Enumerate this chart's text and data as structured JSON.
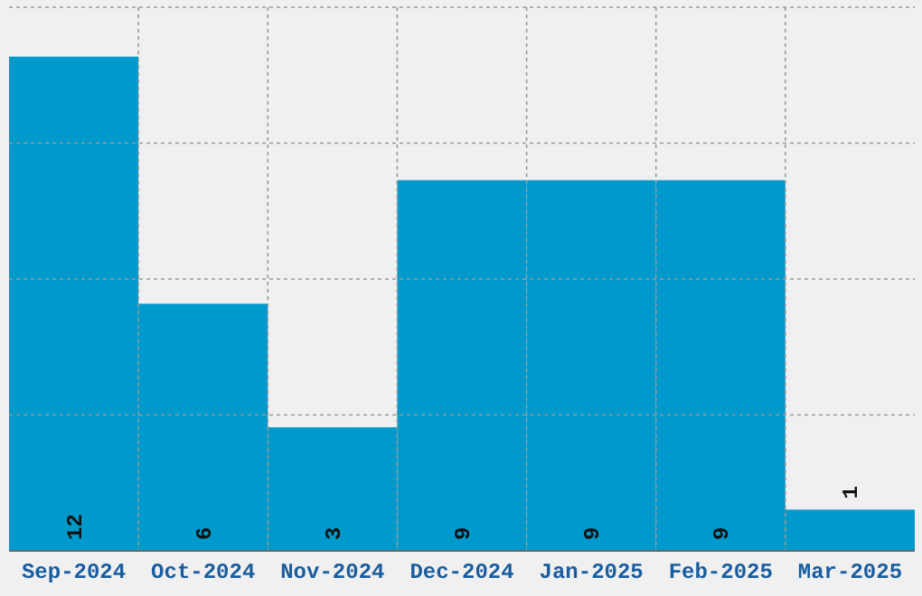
{
  "chart_data": {
    "type": "bar",
    "categories": [
      "Sep-2024",
      "Oct-2024",
      "Nov-2024",
      "Dec-2024",
      "Jan-2025",
      "Feb-2025",
      "Mar-2025"
    ],
    "values": [
      12,
      6,
      3,
      9,
      9,
      9,
      1
    ],
    "color": "#0099cc",
    "ylim": [
      0,
      13.2
    ],
    "yticks": [
      {
        "value": 3.3,
        "label": null
      },
      {
        "value": 6.6,
        "label": null
      },
      {
        "value": 9.9,
        "label": null
      },
      {
        "value": 13.2,
        "label": null
      }
    ],
    "tick_labels": "x",
    "grid": true,
    "data_labels": true
  }
}
